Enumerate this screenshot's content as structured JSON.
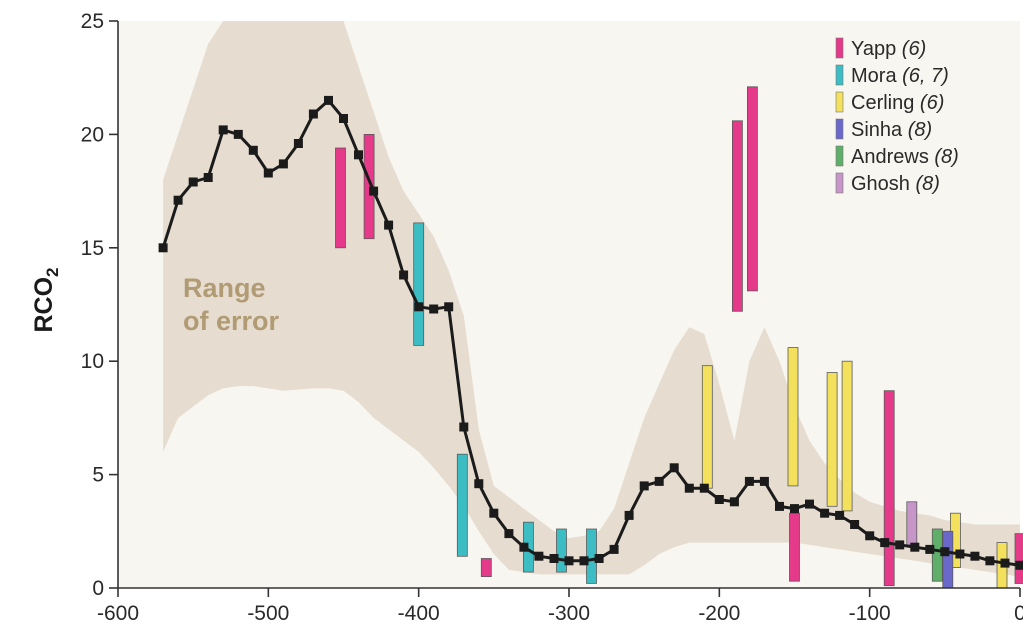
{
  "chart_data": {
    "type": "line",
    "title": "",
    "xlabel": "",
    "ylabel": "RCO2",
    "xlim": [
      -600,
      0
    ],
    "ylim": [
      0,
      25
    ],
    "x_ticks": [
      -600,
      -500,
      -400,
      -300,
      -200,
      -100,
      0
    ],
    "y_ticks": [
      0,
      5,
      10,
      15,
      20,
      25
    ],
    "grid": false,
    "legend_position": "top-right",
    "annotation": {
      "line1": "Range",
      "line2": "of error"
    },
    "colors": {
      "band": "#e6ddd0",
      "line": "#1b1b1b",
      "plot_bg": "#f8f6f1",
      "annotation": "#b09b74"
    },
    "model_curve": {
      "x": [
        -570,
        -560,
        -550,
        -540,
        -530,
        -520,
        -510,
        -500,
        -490,
        -480,
        -470,
        -460,
        -450,
        -440,
        -430,
        -420,
        -410,
        -400,
        -390,
        -380,
        -370,
        -360,
        -350,
        -340,
        -330,
        -320,
        -310,
        -300,
        -290,
        -280,
        -270,
        -260,
        -250,
        -240,
        -230,
        -220,
        -210,
        -200,
        -190,
        -180,
        -170,
        -160,
        -150,
        -140,
        -130,
        -120,
        -110,
        -100,
        -90,
        -80,
        -70,
        -60,
        -50,
        -40,
        -30,
        -20,
        -10,
        0
      ],
      "y": [
        15.0,
        17.1,
        17.9,
        18.1,
        20.2,
        20.0,
        19.3,
        18.3,
        18.7,
        19.6,
        20.9,
        21.5,
        20.7,
        19.1,
        17.5,
        16.0,
        13.8,
        12.4,
        12.3,
        12.4,
        7.1,
        4.6,
        3.3,
        2.4,
        1.8,
        1.4,
        1.3,
        1.2,
        1.2,
        1.3,
        1.7,
        3.2,
        4.5,
        4.7,
        5.3,
        4.4,
        4.4,
        3.9,
        3.8,
        4.7,
        4.7,
        3.6,
        3.5,
        3.7,
        3.3,
        3.2,
        2.8,
        2.3,
        2.0,
        1.9,
        1.8,
        1.7,
        1.6,
        1.5,
        1.4,
        1.2,
        1.1,
        1.0
      ]
    },
    "error_band": {
      "x": [
        -570,
        -560,
        -540,
        -530,
        -520,
        -510,
        -490,
        -470,
        -460,
        -450,
        -440,
        -430,
        -420,
        -410,
        -400,
        -390,
        -380,
        -370,
        -360,
        -350,
        -340,
        -330,
        -320,
        -310,
        -300,
        -290,
        -280,
        -270,
        -260,
        -250,
        -240,
        -230,
        -220,
        -210,
        -200,
        -190,
        -180,
        -170,
        -160,
        -150,
        -140,
        -130,
        -120,
        -110,
        -100,
        -90,
        -80,
        -70,
        -60,
        -50,
        -40,
        -30,
        -20,
        -10,
        0
      ],
      "upper": [
        18,
        20,
        24,
        25,
        25,
        25,
        25,
        25,
        25,
        25,
        23,
        21,
        19,
        17.5,
        16.5,
        15.5,
        14,
        12,
        7,
        4.5,
        4,
        3.5,
        3,
        2.5,
        2.2,
        2.3,
        2.5,
        3.5,
        5.5,
        7.5,
        9,
        10.5,
        11.5,
        11.2,
        9,
        6.5,
        10,
        11.5,
        10,
        8,
        6.5,
        5.5,
        4.8,
        4.2,
        3.8,
        3.6,
        3.4,
        3.3,
        3.2,
        3,
        2.9,
        2.8,
        2.8,
        2.8,
        2.8
      ],
      "lower": [
        6,
        7.5,
        8.5,
        8.8,
        8.9,
        8.9,
        8.7,
        8.8,
        8.8,
        8.7,
        8.2,
        7.5,
        7,
        6.5,
        6,
        5.3,
        4.5,
        3.6,
        2.5,
        1.5,
        0.8,
        0.7,
        0.6,
        0.6,
        0.6,
        0.6,
        0.6,
        0.6,
        0.6,
        1,
        1.5,
        1.8,
        2,
        2,
        2,
        2,
        2,
        2,
        2,
        2,
        1.9,
        1.8,
        1.7,
        1.6,
        1.5,
        1.4,
        1.3,
        1.2,
        1.1,
        1,
        0.9,
        0.8,
        0.7,
        0.6,
        0.5
      ]
    },
    "proxy_series": [
      {
        "name": "Yapp",
        "ref": "(6)",
        "color": "#e5398a",
        "bars": [
          [
            -452,
            15.0,
            19.4
          ],
          [
            -433,
            15.4,
            20.0
          ],
          [
            -355,
            0.5,
            1.3
          ],
          [
            -188,
            12.2,
            20.6
          ],
          [
            -178,
            13.1,
            22.1
          ],
          [
            -150,
            0.3,
            3.3
          ],
          [
            -87,
            0.1,
            8.7
          ],
          [
            0,
            0.2,
            2.4
          ]
        ]
      },
      {
        "name": "Mora",
        "ref": "(6, 7)",
        "color": "#3bbdc3",
        "bars": [
          [
            -400,
            10.7,
            16.1
          ],
          [
            -371,
            1.4,
            5.9
          ],
          [
            -327,
            0.7,
            2.9
          ],
          [
            -305,
            0.7,
            2.6
          ],
          [
            -285,
            0.2,
            2.6
          ]
        ]
      },
      {
        "name": "Cerling",
        "ref": "(6)",
        "color": "#f3e15e",
        "bars": [
          [
            -208,
            4.4,
            9.8
          ],
          [
            -151,
            4.5,
            10.6
          ],
          [
            -125,
            3.6,
            9.5
          ],
          [
            -115,
            3.4,
            10.0
          ],
          [
            -43,
            0.9,
            3.3
          ],
          [
            -12,
            0.0,
            2.0
          ]
        ]
      },
      {
        "name": "Sinha",
        "ref": "(8)",
        "color": "#6a68c8",
        "bars": [
          [
            -48,
            0.0,
            2.5
          ]
        ]
      },
      {
        "name": "Andrews",
        "ref": "(8)",
        "color": "#5faf6a",
        "bars": [
          [
            -55,
            0.3,
            2.6
          ]
        ]
      },
      {
        "name": "Ghosh",
        "ref": "(8)",
        "color": "#c696c8",
        "bars": [
          [
            -72,
            1.9,
            3.8
          ]
        ]
      }
    ]
  }
}
